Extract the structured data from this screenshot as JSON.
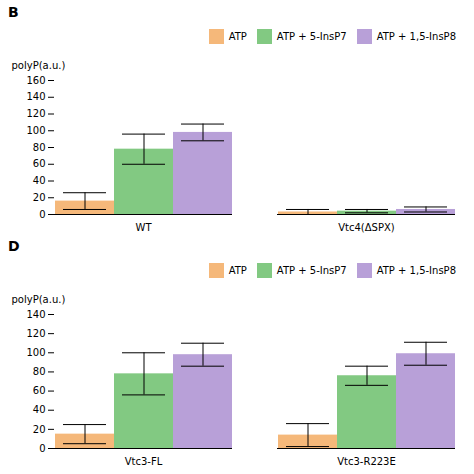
{
  "chart_data": [
    {
      "type": "bar",
      "title": "B",
      "categories": [
        "WT",
        "Vtc4(ΔSPX)"
      ],
      "series": [
        {
          "name": "ATP",
          "color": "#F5B87A",
          "values": [
            16,
            3
          ],
          "errors": [
            10,
            3
          ]
        },
        {
          "name": "ATP + 5-InsP7",
          "color": "#82C982",
          "values": [
            78,
            4
          ],
          "errors": [
            18,
            2
          ]
        },
        {
          "name": "ATP + 1,5-InsP8",
          "color": "#B8A0D8",
          "values": [
            98,
            6
          ],
          "errors": [
            10,
            3
          ]
        }
      ],
      "ylabel": "polyP(a.u.)",
      "ylim": [
        0,
        160
      ],
      "yticks": [
        0,
        20,
        40,
        60,
        80,
        100,
        120,
        140,
        160
      ],
      "legend": "upper right"
    },
    {
      "type": "bar",
      "title": "D",
      "categories": [
        "Vtc3-FL",
        "Vtc3-R223E"
      ],
      "series": [
        {
          "name": "ATP",
          "color": "#F5B87A",
          "values": [
            15,
            14
          ],
          "errors": [
            10,
            12
          ]
        },
        {
          "name": "ATP + 5-InsP7",
          "color": "#82C982",
          "values": [
            78,
            76
          ],
          "errors": [
            22,
            10
          ]
        },
        {
          "name": "ATP + 1,5-InsP8",
          "color": "#B8A0D8",
          "values": [
            98,
            99
          ],
          "errors": [
            12,
            12
          ]
        }
      ],
      "ylabel": "polyP(a.u.)",
      "ylim": [
        0,
        140
      ],
      "yticks": [
        0,
        20,
        40,
        60,
        80,
        100,
        120,
        140
      ],
      "legend": "upper right"
    }
  ]
}
